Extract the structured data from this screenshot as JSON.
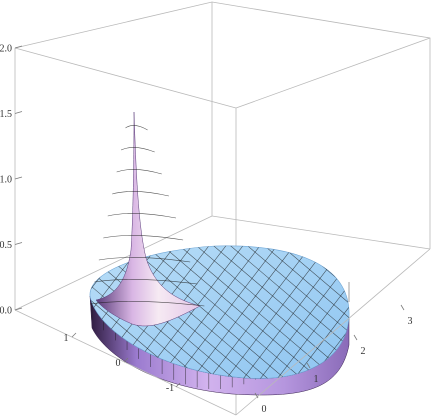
{
  "chart_data": {
    "type": "surface3d",
    "title": "",
    "xlabel": "",
    "ylabel": "",
    "zlabel": "",
    "xlim": [
      -1.8,
      1.8
    ],
    "ylim": [
      -0.2,
      3.2
    ],
    "zlim": [
      0,
      2.0
    ],
    "box": true,
    "x_ticks": [
      "1",
      "0",
      "-1"
    ],
    "y_ticks": [
      "0",
      "1",
      "2",
      "3"
    ],
    "z_ticks": [
      "0.0",
      "0.5",
      "1.0",
      "1.5",
      "2.0"
    ],
    "surface": {
      "shape": "disk",
      "disk_center": [
        0,
        1.5
      ],
      "disk_radius": 1.5,
      "plateau_height": 0.3,
      "spike_location": [
        0,
        0
      ],
      "spike_max": 1.5
    },
    "colors": {
      "plateau_fill": "#9fd0f5",
      "plateau_edge": "#7fb6e6",
      "side_wall": "#c6a5ea",
      "side_wall_dark": "#3a2350",
      "spike_light": "#f3e4f2",
      "spike_mid": "#d9b1e6",
      "box": "#b9b9b9"
    }
  }
}
